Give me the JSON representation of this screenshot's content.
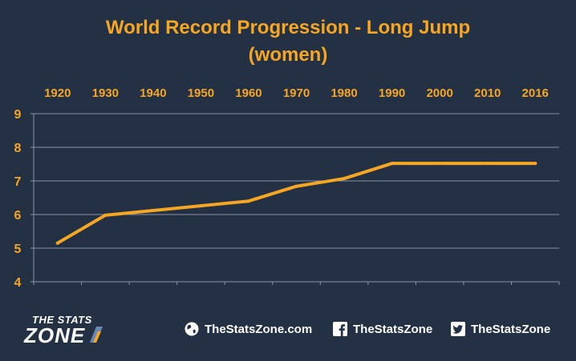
{
  "chart_data": {
    "type": "line",
    "title": "World Record Progression - Long Jump",
    "subtitle": "(women)",
    "xlabel": "",
    "ylabel": "",
    "categories": [
      "1920",
      "1930",
      "1940",
      "1950",
      "1960",
      "1970",
      "1980",
      "1990",
      "2000",
      "2010",
      "2016"
    ],
    "series": [
      {
        "values": [
          5.15,
          5.98,
          6.12,
          6.26,
          6.4,
          6.84,
          7.07,
          7.52,
          7.52,
          7.52,
          7.52
        ]
      }
    ],
    "ylim": [
      4,
      9
    ],
    "yticks": [
      4,
      5,
      6,
      7,
      8,
      9
    ],
    "grid": true,
    "x_axis_position": "top",
    "line_color": "#f5a623",
    "label_color": "#f5a623",
    "grid_color": "#8a94a6",
    "background_color": "#243044"
  },
  "footer": {
    "logo": {
      "line1": "THE STATS",
      "line2": "ZONE"
    },
    "website": {
      "icon": "globe-icon",
      "text": "TheStatsZone.com"
    },
    "facebook": {
      "icon": "facebook-icon",
      "text": "TheStatsZone"
    },
    "twitter": {
      "icon": "twitter-icon",
      "text": "TheStatsZone"
    }
  }
}
